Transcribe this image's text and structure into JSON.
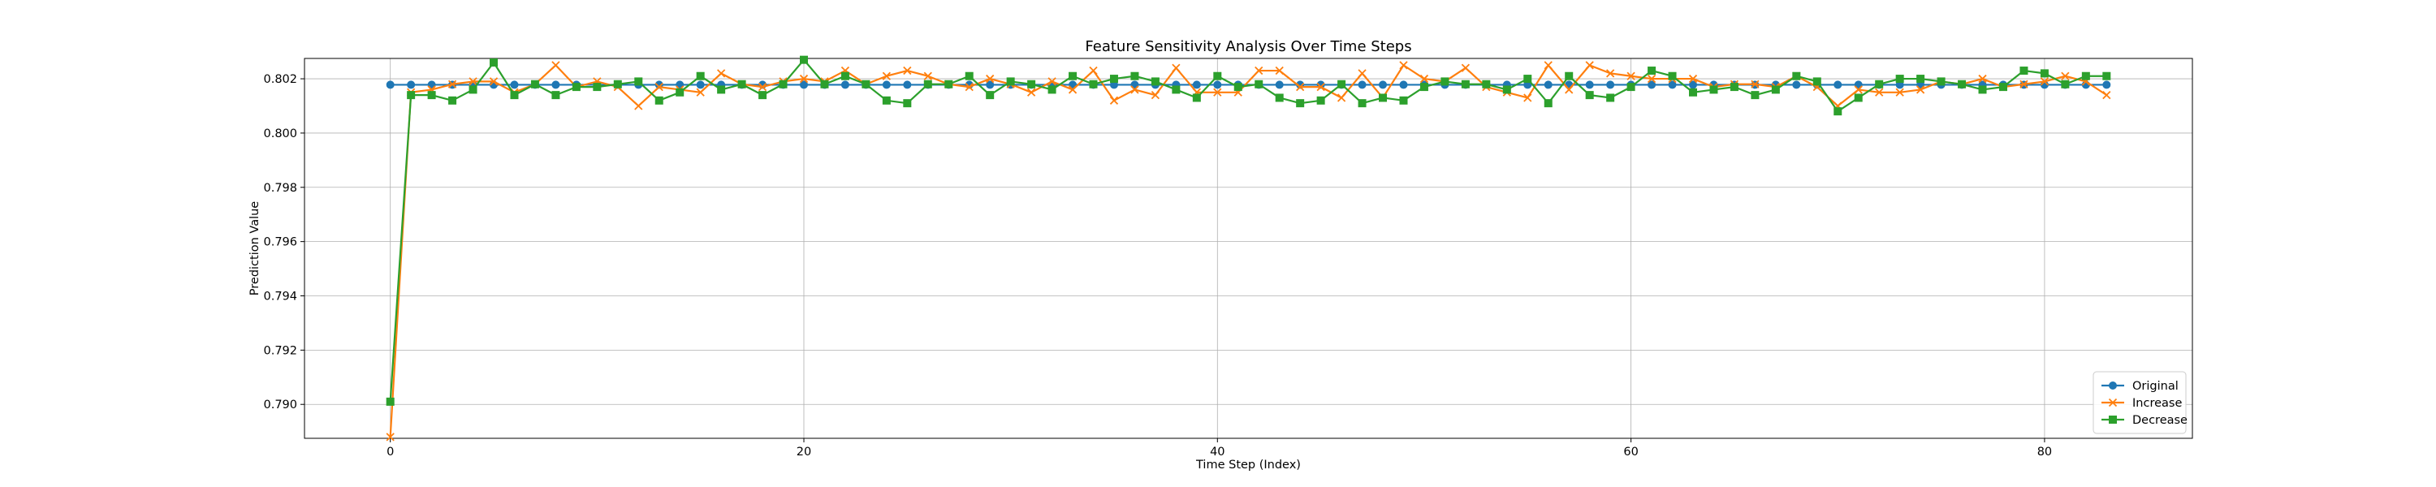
{
  "chart_data": {
    "type": "line",
    "title": "Feature Sensitivity Analysis Over Time Steps",
    "xlabel": "Time Step (Index)",
    "ylabel": "Prediction Value",
    "xlim": [
      -4.15,
      87.15
    ],
    "ylim": [
      0.78875,
      0.80275
    ],
    "xticks": [
      0,
      20,
      40,
      60,
      80
    ],
    "yticks": [
      0.79,
      0.792,
      0.794,
      0.796,
      0.798,
      0.8,
      0.802
    ],
    "ytick_labels": [
      "0.790",
      "0.792",
      "0.794",
      "0.796",
      "0.798",
      "0.800",
      "0.802"
    ],
    "grid": true,
    "legend_position": "lower-right",
    "x": [
      0,
      1,
      2,
      3,
      4,
      5,
      6,
      7,
      8,
      9,
      10,
      11,
      12,
      13,
      14,
      15,
      16,
      17,
      18,
      19,
      20,
      21,
      22,
      23,
      24,
      25,
      26,
      27,
      28,
      29,
      30,
      31,
      32,
      33,
      34,
      35,
      36,
      37,
      38,
      39,
      40,
      41,
      42,
      43,
      44,
      45,
      46,
      47,
      48,
      49,
      50,
      51,
      52,
      53,
      54,
      55,
      56,
      57,
      58,
      59,
      60,
      61,
      62,
      63,
      64,
      65,
      66,
      67,
      68,
      69,
      70,
      71,
      72,
      73,
      74,
      75,
      76,
      77,
      78,
      79,
      80,
      81,
      82,
      83
    ],
    "series": [
      {
        "name": "Original",
        "color": "#1f77b4",
        "marker": "circle",
        "values": [
          0.80178,
          0.80178,
          0.80178,
          0.80178,
          0.80178,
          0.80178,
          0.80178,
          0.80178,
          0.80178,
          0.80178,
          0.80178,
          0.80178,
          0.80178,
          0.80178,
          0.80178,
          0.80178,
          0.80178,
          0.80178,
          0.80178,
          0.80178,
          0.80178,
          0.80178,
          0.80178,
          0.80178,
          0.80178,
          0.80178,
          0.80178,
          0.80178,
          0.80178,
          0.80178,
          0.80178,
          0.80178,
          0.80178,
          0.80178,
          0.80178,
          0.80178,
          0.80178,
          0.80178,
          0.80178,
          0.80178,
          0.80178,
          0.80178,
          0.80178,
          0.80178,
          0.80178,
          0.80178,
          0.80178,
          0.80178,
          0.80178,
          0.80178,
          0.80178,
          0.80178,
          0.80178,
          0.80178,
          0.80178,
          0.80178,
          0.80178,
          0.80178,
          0.80178,
          0.80178,
          0.80178,
          0.80178,
          0.80178,
          0.80178,
          0.80178,
          0.80178,
          0.80178,
          0.80178,
          0.80178,
          0.80178,
          0.80178,
          0.80178,
          0.80178,
          0.80178,
          0.80178,
          0.80178,
          0.80178,
          0.80178,
          0.80178,
          0.80178,
          0.80178,
          0.80178,
          0.80178,
          0.80178
        ]
      },
      {
        "name": "Increase",
        "color": "#ff7f0e",
        "marker": "x",
        "values": [
          0.7888,
          0.8015,
          0.8016,
          0.8018,
          0.8019,
          0.8019,
          0.8015,
          0.8018,
          0.8025,
          0.8017,
          0.8019,
          0.8017,
          0.801,
          0.8017,
          0.8016,
          0.8015,
          0.8022,
          0.8018,
          0.8017,
          0.8019,
          0.802,
          0.8019,
          0.8023,
          0.8018,
          0.8021,
          0.8023,
          0.8021,
          0.8018,
          0.8017,
          0.802,
          0.8018,
          0.8015,
          0.8019,
          0.8016,
          0.8023,
          0.8012,
          0.8016,
          0.8014,
          0.8024,
          0.8015,
          0.8015,
          0.8015,
          0.8023,
          0.8023,
          0.8017,
          0.8017,
          0.8013,
          0.8022,
          0.8013,
          0.8025,
          0.802,
          0.8019,
          0.8024,
          0.8017,
          0.8015,
          0.8013,
          0.8025,
          0.8016,
          0.8025,
          0.8022,
          0.8021,
          0.802,
          0.802,
          0.802,
          0.8017,
          0.8018,
          0.8018,
          0.8017,
          0.8021,
          0.8017,
          0.801,
          0.8016,
          0.8015,
          0.8015,
          0.8016,
          0.8019,
          0.8018,
          0.802,
          0.8017,
          0.8018,
          0.8019,
          0.8021,
          0.8019,
          0.8014
        ]
      },
      {
        "name": "Decrease",
        "color": "#2ca02c",
        "marker": "square",
        "values": [
          0.7901,
          0.8014,
          0.8014,
          0.8012,
          0.8016,
          0.8026,
          0.8014,
          0.8018,
          0.8014,
          0.8017,
          0.8017,
          0.8018,
          0.8019,
          0.8012,
          0.8015,
          0.8021,
          0.8016,
          0.8018,
          0.8014,
          0.8018,
          0.8027,
          0.8018,
          0.8021,
          0.8018,
          0.8012,
          0.8011,
          0.8018,
          0.8018,
          0.8021,
          0.8014,
          0.8019,
          0.8018,
          0.8016,
          0.8021,
          0.8018,
          0.802,
          0.8021,
          0.8019,
          0.8016,
          0.8013,
          0.8021,
          0.8017,
          0.8018,
          0.8013,
          0.8011,
          0.8012,
          0.8018,
          0.8011,
          0.8013,
          0.8012,
          0.8017,
          0.8019,
          0.8018,
          0.8018,
          0.8016,
          0.802,
          0.8011,
          0.8021,
          0.8014,
          0.8013,
          0.8017,
          0.8023,
          0.8021,
          0.8015,
          0.8016,
          0.8017,
          0.8014,
          0.8016,
          0.8021,
          0.8019,
          0.8008,
          0.8013,
          0.8018,
          0.802,
          0.802,
          0.8019,
          0.8018,
          0.8016,
          0.8017,
          0.8023,
          0.8022,
          0.8018,
          0.8021,
          0.8021
        ]
      }
    ]
  }
}
